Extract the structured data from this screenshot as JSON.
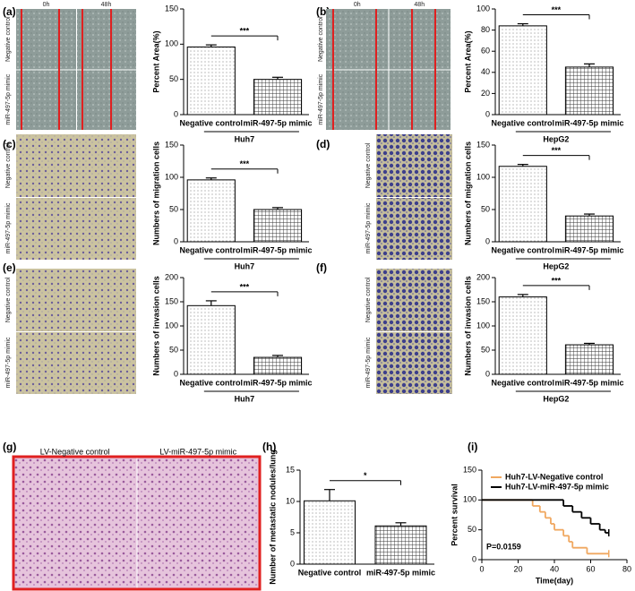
{
  "panels": [
    {
      "letter": "(a)",
      "top_labels": [
        "0h",
        "48h"
      ],
      "side_labels": [
        "Negative control",
        "miR-497-5p mimic"
      ]
    },
    {
      "letter": "(b)",
      "top_labels": [
        "0h",
        "48h"
      ],
      "side_labels": [
        "Negative control",
        "miR-497-5p mimic"
      ]
    },
    {
      "letter": "(c)",
      "side_labels": [
        "Negative control",
        "miR-497-5p mimic"
      ]
    },
    {
      "letter": "(d)",
      "side_labels": [
        "Negative control",
        "miR-497-5p mimic"
      ]
    },
    {
      "letter": "(e)",
      "side_labels": [
        "Negative control",
        "miR-497-5p mimic"
      ]
    },
    {
      "letter": "(f)",
      "side_labels": [
        "Negative control",
        "miR-497-5p mimic"
      ]
    },
    {
      "letter": "(g)",
      "top_labels": [
        "LV-Negative control",
        "LV-miR-497-5p mimic"
      ]
    },
    {
      "letter": "(h)"
    },
    {
      "letter": "(i)"
    }
  ],
  "chart_data": [
    {
      "type": "bar",
      "ylabel": "Percent Area(%)",
      "categories": [
        "Negative control",
        "miR-497-5p mimic"
      ],
      "values": [
        96,
        50
      ],
      "errors": [
        3,
        3
      ],
      "ylim": [
        0,
        150
      ],
      "yticks": [
        0,
        50,
        100,
        150
      ],
      "group": "Huh7",
      "significance": "***"
    },
    {
      "type": "bar",
      "ylabel": "Percent Area(%)",
      "categories": [
        "Negative control",
        "miR-497-5p mimic"
      ],
      "values": [
        84,
        45
      ],
      "errors": [
        2,
        3
      ],
      "ylim": [
        0,
        100
      ],
      "yticks": [
        0,
        20,
        40,
        60,
        80,
        100
      ],
      "group": "HepG2",
      "significance": "***"
    },
    {
      "type": "bar",
      "ylabel": "Numbers of migration cells",
      "categories": [
        "Negative control",
        "miR-497-5p mimic"
      ],
      "values": [
        96,
        50
      ],
      "errors": [
        3,
        3
      ],
      "ylim": [
        0,
        150
      ],
      "yticks": [
        0,
        50,
        100,
        150
      ],
      "group": "Huh7",
      "significance": "***"
    },
    {
      "type": "bar",
      "ylabel": "Numbers of migration cells",
      "categories": [
        "Negative control",
        "miR-497-5p mimic"
      ],
      "values": [
        117,
        40
      ],
      "errors": [
        3,
        3
      ],
      "ylim": [
        0,
        150
      ],
      "yticks": [
        0,
        50,
        100,
        150
      ],
      "group": "HepG2",
      "significance": "***"
    },
    {
      "type": "bar",
      "ylabel": "Numbers of invasion cells",
      "categories": [
        "Negative control",
        "miR-497-5p mimic"
      ],
      "values": [
        142,
        35
      ],
      "errors": [
        10,
        4
      ],
      "ylim": [
        0,
        200
      ],
      "yticks": [
        0,
        50,
        100,
        150,
        200
      ],
      "group": "Huh7",
      "significance": "***"
    },
    {
      "type": "bar",
      "ylabel": "Numbers of invasion cells",
      "categories": [
        "Negative control",
        "miR-497-5p mimic"
      ],
      "values": [
        160,
        61
      ],
      "errors": [
        5,
        3
      ],
      "ylim": [
        0,
        200
      ],
      "yticks": [
        0,
        50,
        100,
        150,
        200
      ],
      "group": "HepG2",
      "significance": "***"
    },
    {
      "type": "bar",
      "ylabel": "Number of metastatic nodules/lung",
      "categories": [
        "Negative control",
        "miR-497-5p mimic"
      ],
      "values": [
        10.1,
        6.1
      ],
      "errors": [
        1.8,
        0.5
      ],
      "ylim": [
        0,
        15
      ],
      "yticks": [
        0,
        5,
        10,
        15
      ],
      "significance": "*"
    },
    {
      "type": "line",
      "xlabel": "Time(day)",
      "ylabel": "Percent survival",
      "xlim": [
        0,
        80
      ],
      "xticks": [
        0,
        20,
        40,
        60,
        80
      ],
      "ylim": [
        0,
        150
      ],
      "yticks": [
        0,
        50,
        100,
        150
      ],
      "legend": "top-right",
      "annotation": "P=0.0159",
      "series": [
        {
          "name": "Huh7-LV-Negative control",
          "color": "#f0a860",
          "x": [
            0,
            28,
            32,
            35,
            38,
            40,
            45,
            48,
            50,
            58,
            70
          ],
          "values": [
            100,
            90,
            80,
            70,
            60,
            50,
            40,
            30,
            20,
            10,
            10
          ]
        },
        {
          "name": "Huh7-LV-miR-497-5p mimic",
          "color": "#000000",
          "x": [
            0,
            45,
            50,
            55,
            60,
            65,
            68,
            70
          ],
          "values": [
            100,
            90,
            80,
            70,
            60,
            50,
            45,
            45
          ]
        }
      ]
    }
  ]
}
